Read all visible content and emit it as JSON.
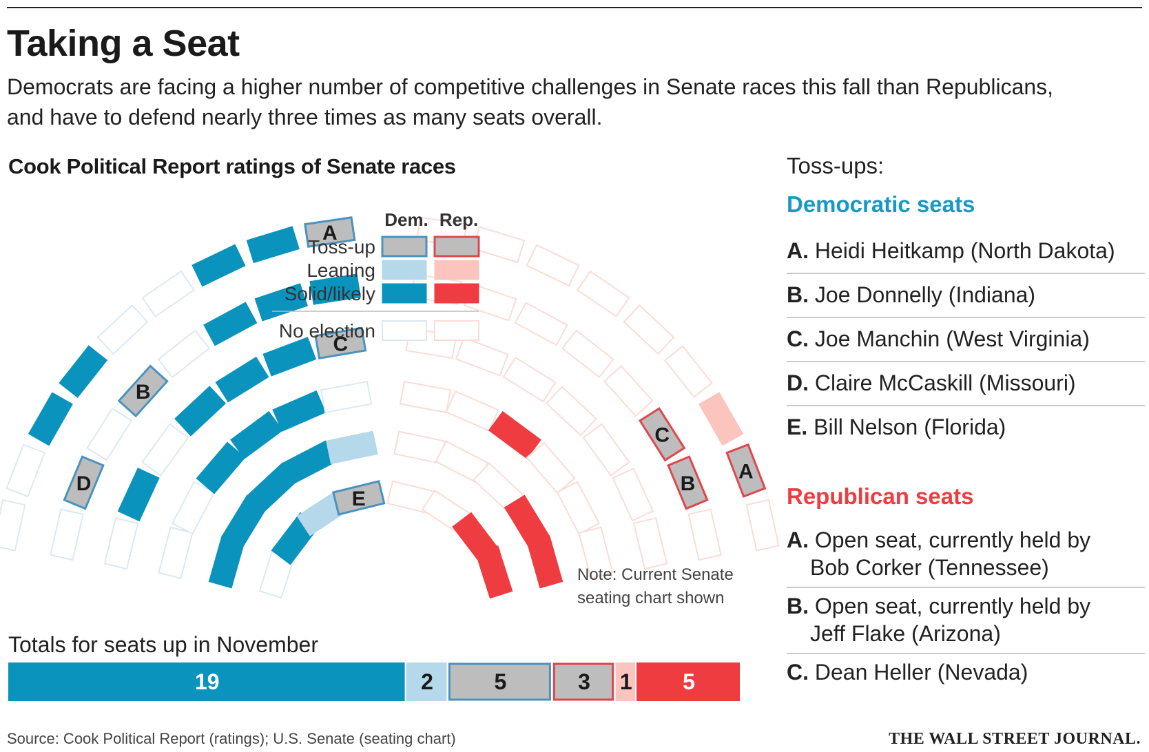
{
  "title": "Taking a Seat",
  "subtitle": "Democrats are facing a higher number of competitive challenges in Senate races this fall than Republicans, and have to defend nearly three times as many seats overall.",
  "chart_title": "Cook Political Report ratings of Senate races",
  "colors": {
    "dem_solid": "#0a93bd",
    "dem_leaning": "#b5d9ea",
    "dem_tossup_border": "#4a93bf",
    "rep_solid": "#ee3c41",
    "rep_leaning": "#fbc4bd",
    "rep_tossup_border": "#e0464b",
    "tossup_fill": "#bdbdbd",
    "no_election_dem": "#dce9f2",
    "no_election_rep": "#fbdcd6"
  },
  "legend": {
    "col_dem": "Dem.",
    "col_rep": "Rep.",
    "rows": [
      "Toss-up",
      "Leaning",
      "Solid/likely",
      "No election"
    ]
  },
  "note": "Note: Current Senate seating chart shown",
  "totals_label": "Totals for seats up in November",
  "chart_data": {
    "type": "bar",
    "stacked": true,
    "title": "Cook Political Report ratings of Senate races",
    "segments": [
      {
        "name": "Dem. Solid/likely",
        "value": 19
      },
      {
        "name": "Dem. Leaning",
        "value": 2
      },
      {
        "name": "Dem. Toss-up",
        "value": 5
      },
      {
        "name": "Rep. Toss-up",
        "value": 3
      },
      {
        "name": "Rep. Leaning",
        "value": 1
      },
      {
        "name": "Rep. Solid/likely",
        "value": 5
      }
    ],
    "tossup_seat_labels": {
      "dem": [
        "A",
        "B",
        "C",
        "D",
        "E"
      ],
      "rep": [
        "A",
        "B",
        "C"
      ]
    }
  },
  "sidebar": {
    "heading": "Toss-ups:",
    "dem_title": "Democratic seats",
    "dem_items": [
      {
        "letter": "A.",
        "text": "Heidi Heitkamp (North Dakota)"
      },
      {
        "letter": "B.",
        "text": "Joe Donnelly (Indiana)"
      },
      {
        "letter": "C.",
        "text": "Joe Manchin (West Virginia)"
      },
      {
        "letter": "D.",
        "text": "Claire McCaskill (Missouri)"
      },
      {
        "letter": "E.",
        "text": "Bill Nelson (Florida)"
      }
    ],
    "rep_title": "Republican seats",
    "rep_items": [
      {
        "letter": "A.",
        "text": "Open seat, currently held by",
        "text2": "Bob Corker (Tennessee)"
      },
      {
        "letter": "B.",
        "text": "Open seat, currently held by",
        "text2": "Jeff Flake (Arizona)"
      },
      {
        "letter": "C.",
        "text": "Dean Heller (Nevada)",
        "text2": ""
      }
    ]
  },
  "source": "Source: Cook Political Report (ratings); U.S. Senate (seating chart)",
  "publisher": "THE WALL STREET JOURNAL."
}
